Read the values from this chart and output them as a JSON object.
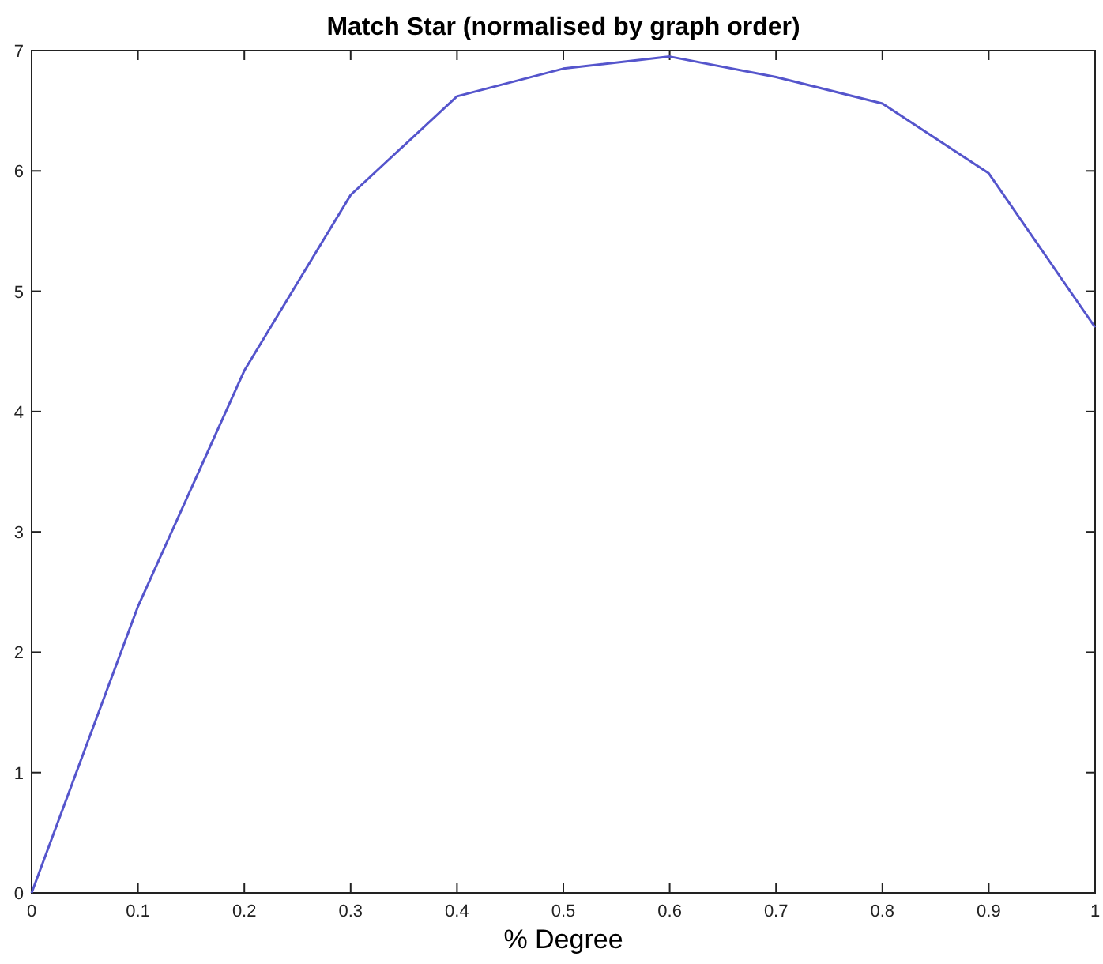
{
  "chart_data": {
    "type": "line",
    "title": "Match Star (normalised by graph order)",
    "xlabel": "% Degree",
    "x": [
      0,
      0.1,
      0.2,
      0.3,
      0.4,
      0.5,
      0.6,
      0.7,
      0.8,
      0.9,
      1
    ],
    "series": [
      {
        "color": "#5555cc",
        "values": [
          0,
          2.38,
          4.34,
          5.8,
          6.62,
          6.85,
          6.95,
          6.78,
          6.56,
          5.98,
          4.7
        ]
      }
    ],
    "xlim": [
      0,
      1
    ],
    "xticks": [
      0,
      0.1,
      0.2,
      0.3,
      0.4,
      0.5,
      0.6,
      0.7,
      0.8,
      0.9,
      1
    ],
    "ylim": [
      0,
      7
    ],
    "yticks": [
      0,
      1,
      2,
      3,
      4,
      5,
      6,
      7
    ],
    "grid": false,
    "marker": "none",
    "line_style": "solid"
  }
}
